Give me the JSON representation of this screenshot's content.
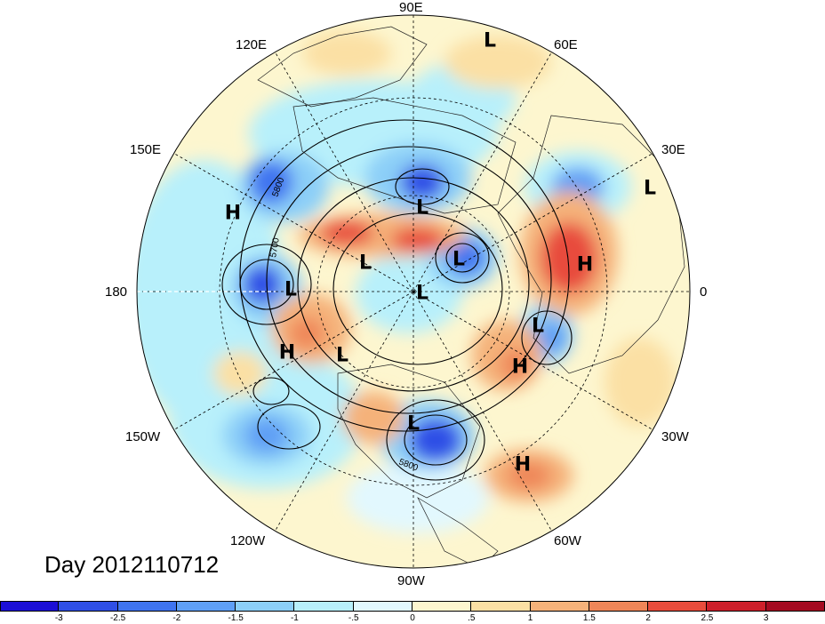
{
  "map": {
    "projection": "north polar stereographic",
    "title_text": "Day 2012110712",
    "longitude_labels": {
      "top": "90E",
      "upper_left": "120E",
      "upper_right": "60E",
      "left_upper": "150E",
      "right_upper": "30E",
      "left": "180",
      "right": "0",
      "left_lower": "150W",
      "right_lower": "30W",
      "lower_left": "120W",
      "lower_right": "60W",
      "bottom": "90W"
    },
    "contour_labels": [
      "5800",
      "5700",
      "5800"
    ],
    "pressure_centers": [
      {
        "type": "L"
      },
      {
        "type": "L"
      },
      {
        "type": "L"
      },
      {
        "type": "L"
      },
      {
        "type": "L"
      },
      {
        "type": "L"
      },
      {
        "type": "L"
      },
      {
        "type": "L"
      },
      {
        "type": "L"
      },
      {
        "type": "L"
      },
      {
        "type": "H"
      },
      {
        "type": "H"
      },
      {
        "type": "H"
      },
      {
        "type": "H"
      },
      {
        "type": "H"
      }
    ]
  },
  "colorbar": {
    "colors": [
      "#1b0fd6",
      "#2f4fe6",
      "#3f74f0",
      "#5f9ff5",
      "#8ccff8",
      "#b8f0fb",
      "#e2f8fe",
      "#fdf6cf",
      "#fbe0a4",
      "#f5b27a",
      "#ef8658",
      "#e84c3c",
      "#cd1f2a",
      "#a40a20"
    ],
    "tick_labels": [
      "-3",
      "-2.5",
      "-2",
      "-1.5",
      "-1",
      "-.5",
      "0",
      ".5",
      "1",
      "1.5",
      "2",
      "2.5",
      "3"
    ]
  }
}
